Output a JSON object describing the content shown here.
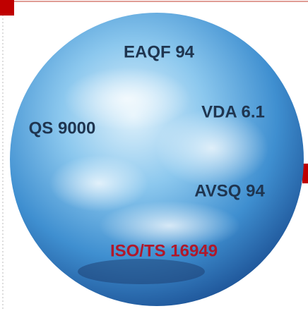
{
  "globe": {
    "labels": [
      "EAQF 94",
      "VDA 6.1",
      "QS 9000",
      "AVSQ 94",
      "ISO/TS 16949"
    ]
  }
}
